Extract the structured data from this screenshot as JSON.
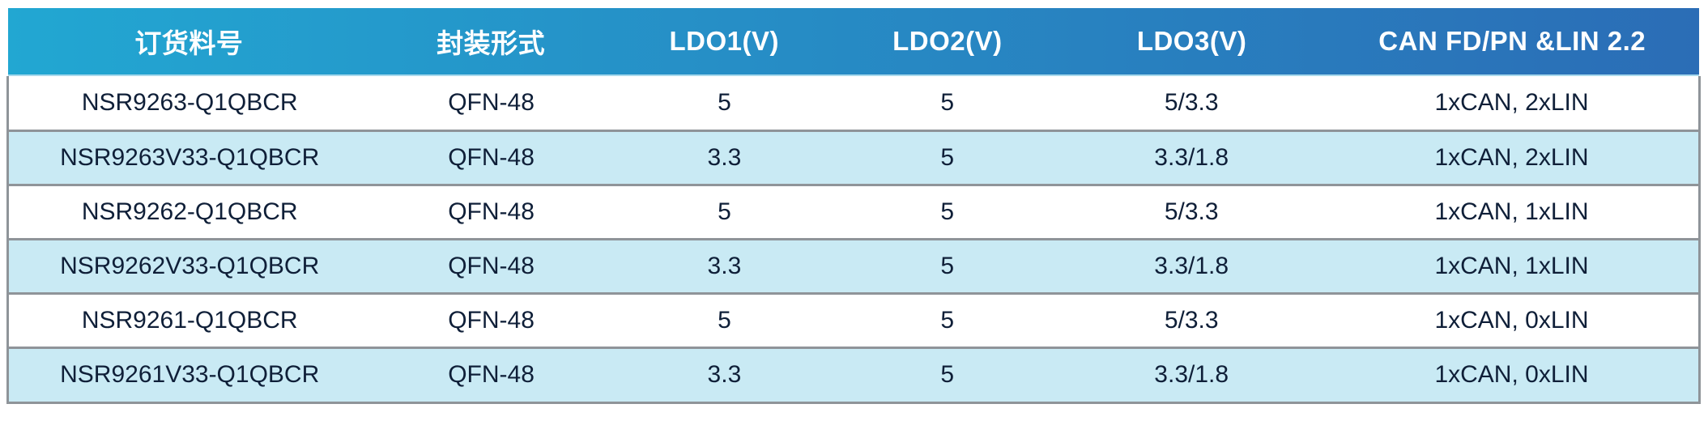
{
  "table": {
    "columns": [
      {
        "label": "订货料号"
      },
      {
        "label": "封装形式"
      },
      {
        "label": "LDO1(V)"
      },
      {
        "label": "LDO2(V)"
      },
      {
        "label": "LDO3(V)"
      },
      {
        "label": "CAN FD/PN &LIN 2.2"
      }
    ],
    "rows": [
      [
        "NSR9263-Q1QBCR",
        "QFN-48",
        "5",
        "5",
        "5/3.3",
        "1xCAN, 2xLIN"
      ],
      [
        "NSR9263V33-Q1QBCR",
        "QFN-48",
        "3.3",
        "5",
        "3.3/1.8",
        "1xCAN, 2xLIN"
      ],
      [
        "NSR9262-Q1QBCR",
        "QFN-48",
        "5",
        "5",
        "5/3.3",
        "1xCAN, 1xLIN"
      ],
      [
        "NSR9262V33-Q1QBCR",
        "QFN-48",
        "3.3",
        "5",
        "3.3/1.8",
        "1xCAN, 1xLIN"
      ],
      [
        "NSR9261-Q1QBCR",
        "QFN-48",
        "5",
        "5",
        "5/3.3",
        "1xCAN, 0xLIN"
      ],
      [
        "NSR9261V33-Q1QBCR",
        "QFN-48",
        "3.3",
        "5",
        "3.3/1.8",
        "1xCAN, 0xLIN"
      ]
    ]
  },
  "colors": {
    "header_gradient_start": "#22a7d2",
    "header_gradient_end": "#2b6db6",
    "header_text": "#ffffff",
    "row_alt_background": "#c9eaf4",
    "row_background": "#ffffff",
    "body_text": "#0f1f38",
    "border_gray": "#8f9499"
  }
}
